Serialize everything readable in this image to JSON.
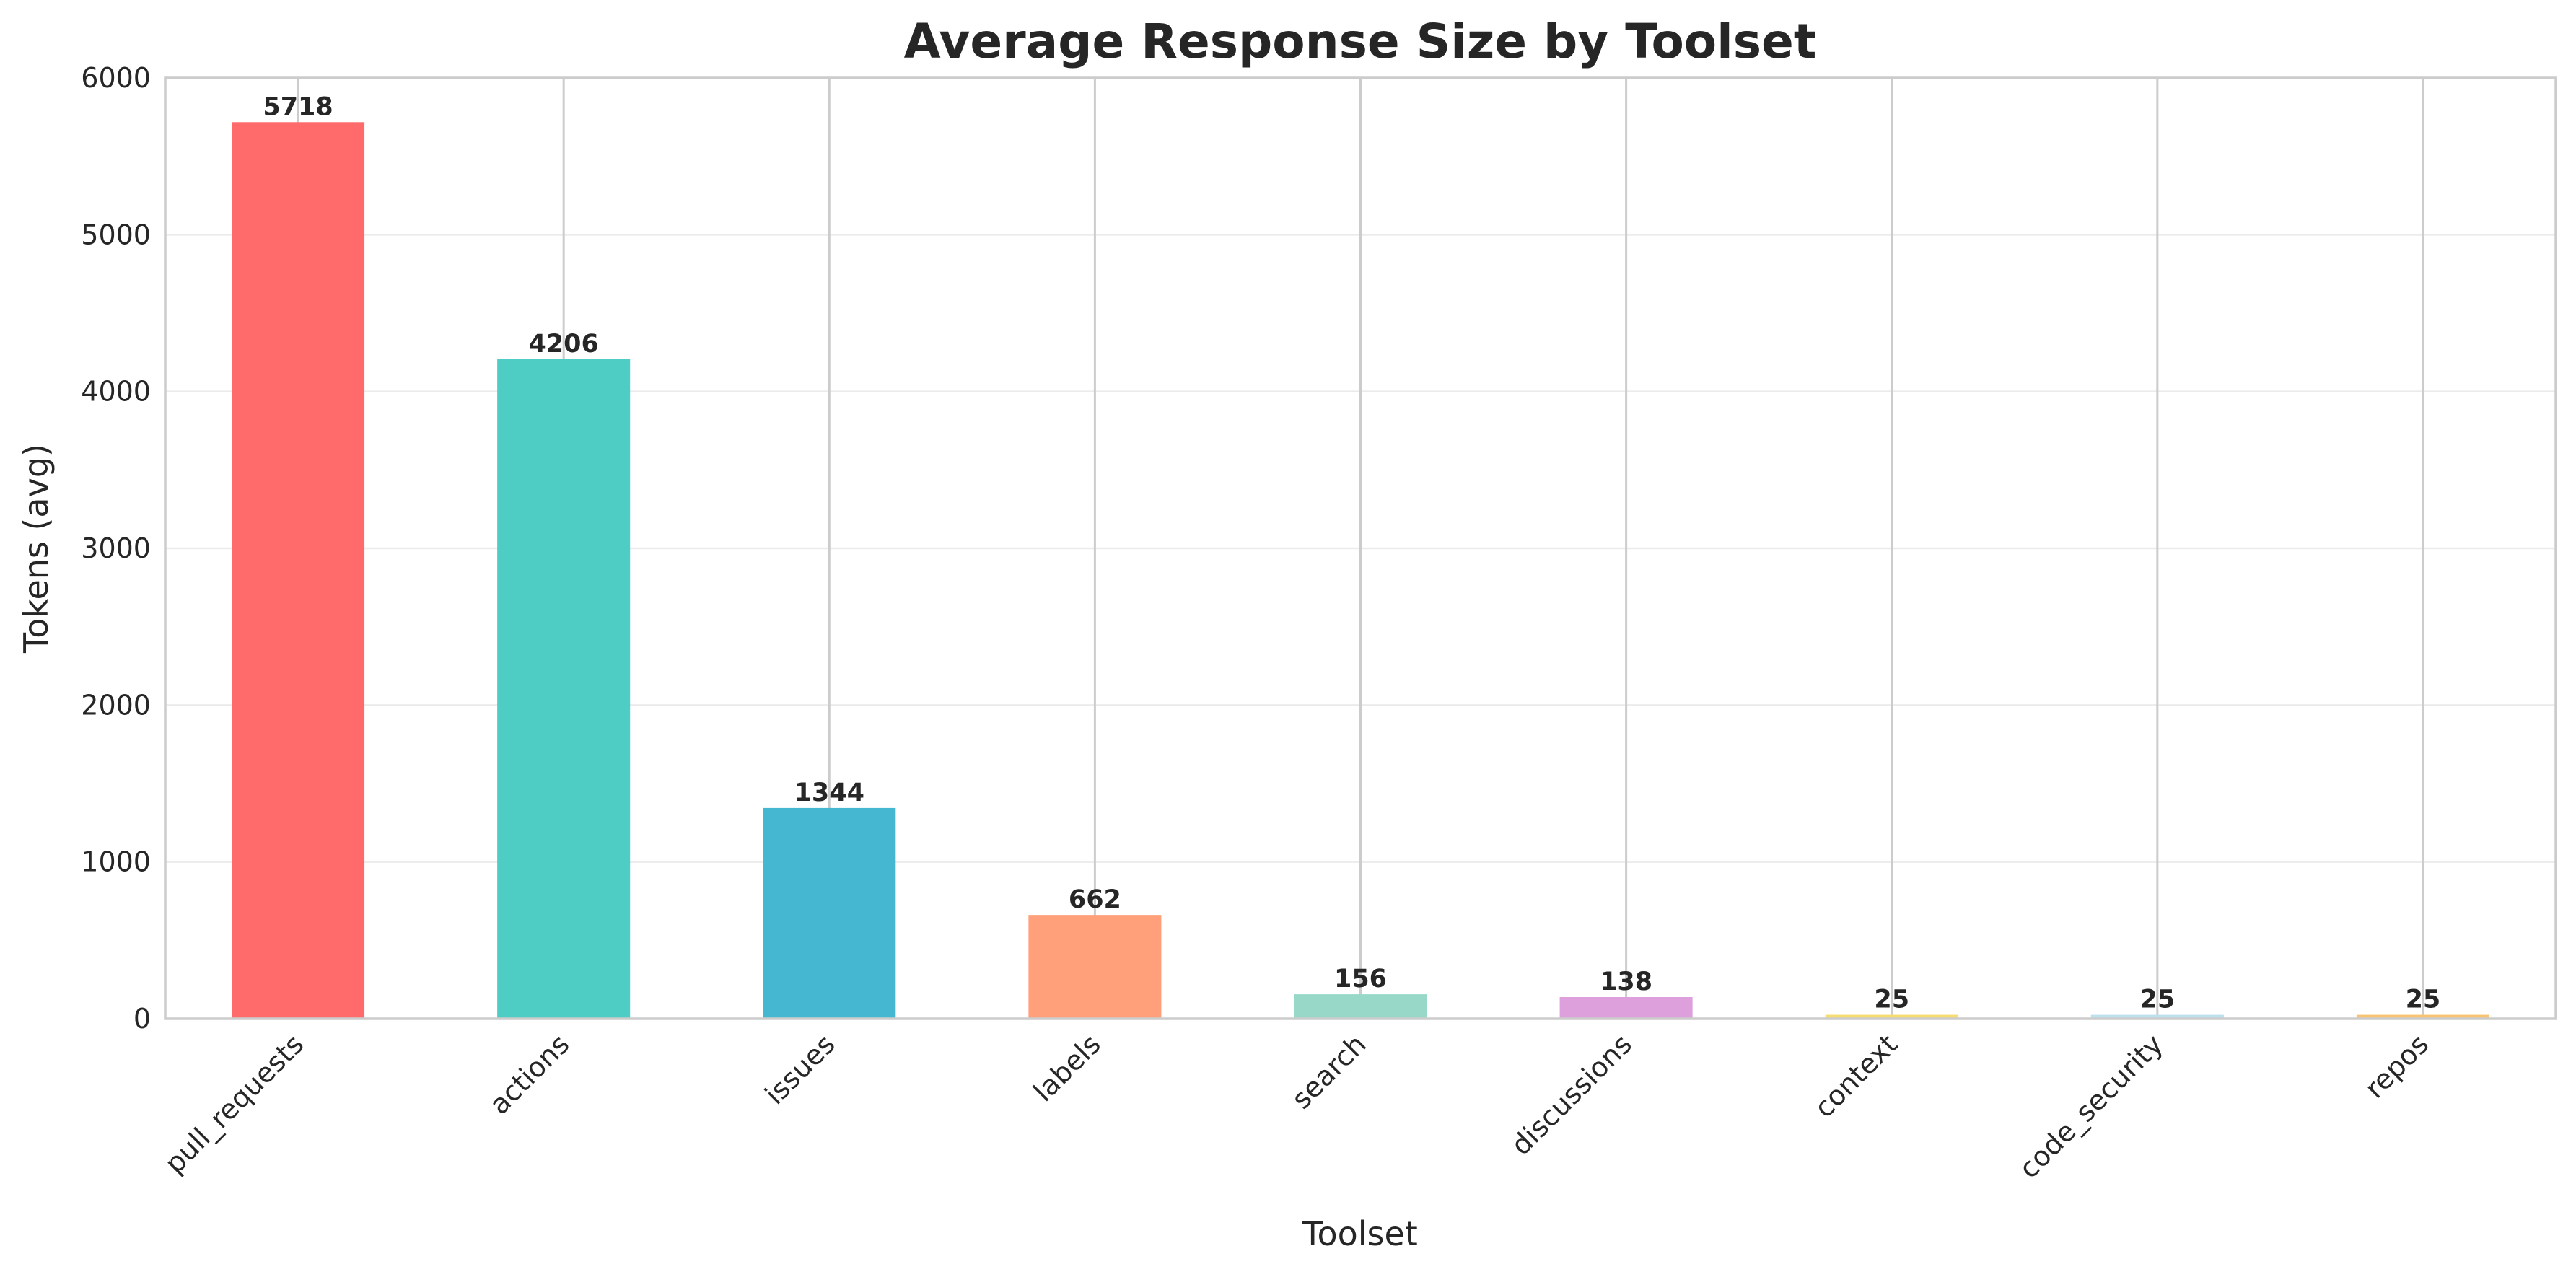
{
  "chart_data": {
    "type": "bar",
    "title": "Average Response Size by Toolset",
    "xlabel": "Toolset",
    "ylabel": "Tokens (avg)",
    "categories": [
      "pull_requests",
      "actions",
      "issues",
      "labels",
      "search",
      "discussions",
      "context",
      "code_security",
      "repos"
    ],
    "values": [
      5718,
      4206,
      1344,
      662,
      156,
      138,
      25,
      25,
      25
    ],
    "data_labels": [
      "5718",
      "4206",
      "1344",
      "662",
      "156",
      "138",
      "25",
      "25",
      "25"
    ],
    "colors": [
      "#ff6b6b",
      "#4ecdc4",
      "#45b7d1",
      "#ffa07a",
      "#98d8c8",
      "#dda0dd",
      "#f7dc6f",
      "#bde0ee",
      "#f8c471"
    ],
    "ylim": [
      0,
      6000
    ],
    "yticks": [
      0,
      1000,
      2000,
      3000,
      4000,
      5000,
      6000
    ],
    "grid": true,
    "legend": "none"
  }
}
